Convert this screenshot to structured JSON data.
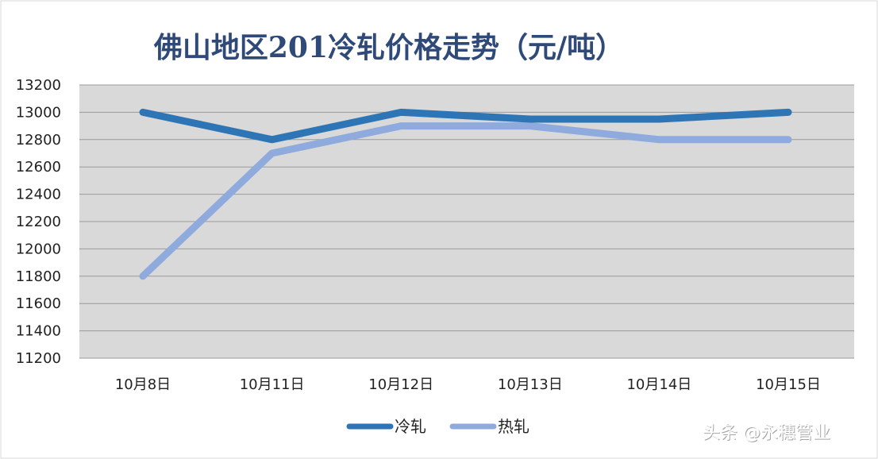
{
  "chart_data": {
    "type": "line",
    "title": "佛山地区201冷轧价格走势（元/吨）",
    "categories": [
      "10月8日",
      "10月11日",
      "10月12日",
      "10月13日",
      "10月14日",
      "10月15日"
    ],
    "ylim": [
      11200,
      13200
    ],
    "yticks": [
      13200,
      13000,
      12800,
      12600,
      12400,
      12200,
      12000,
      11800,
      11600,
      11400,
      11200
    ],
    "grid": true,
    "legend_position": "bottom",
    "series": [
      {
        "name": "冷轧",
        "color": "#2e75b6",
        "values": [
          13000,
          12800,
          13000,
          12950,
          12950,
          13000
        ]
      },
      {
        "name": "热轧",
        "color": "#8faadc",
        "values": [
          11800,
          12700,
          12900,
          12900,
          12800,
          12800
        ]
      }
    ]
  },
  "watermark": {
    "text": "头条 @永穗管业"
  },
  "colors": {
    "plot_background": "#d9d9d9",
    "title": "#2f4a78"
  }
}
